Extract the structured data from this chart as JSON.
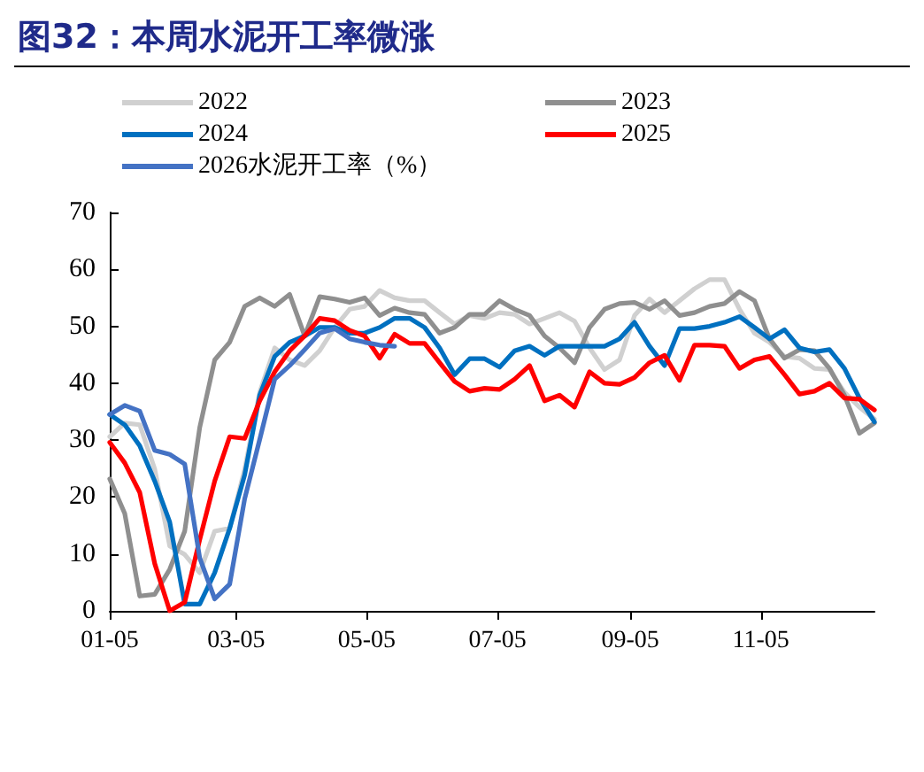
{
  "chart_data": {
    "type": "line",
    "title": "图32：本周水泥开工率微涨",
    "x": [
      "--01-05",
      "--01-12",
      "--01-19",
      "--01-26",
      "--02-02",
      "--02-09",
      "--02-16",
      "--02-23",
      "--03-02",
      "--03-09",
      "--03-16",
      "--03-23",
      "--03-30",
      "--04-06",
      "--04-13",
      "--04-20",
      "--04-27",
      "--05-04",
      "--05-11",
      "--05-18",
      "--05-25",
      "--06-01",
      "--06-08",
      "--06-15",
      "--06-22",
      "--06-29",
      "--07-06",
      "--07-13",
      "--07-20",
      "--07-27",
      "--08-03",
      "--08-10",
      "--08-17",
      "--08-24",
      "--08-31",
      "--09-07",
      "--09-14",
      "--09-21",
      "--09-28",
      "--10-05",
      "--10-12",
      "--10-19",
      "--10-26",
      "--11-02",
      "--11-09",
      "--11-16",
      "--11-23",
      "--11-30",
      "--12-07",
      "--12-14",
      "--12-21",
      "--12-28"
    ],
    "series": [
      {
        "name": "2022",
        "color": "#d0d0d0",
        "values": [
          30.6,
          33,
          32.7,
          24.9,
          11.4,
          9.9,
          6.7,
          14,
          14.5,
          24.9,
          38.4,
          46.2,
          44.1,
          43.1,
          45.7,
          49.8,
          53,
          53.5,
          56.3,
          55,
          54.5,
          54.5,
          52.4,
          50.4,
          51.9,
          51.4,
          52.4,
          52.1,
          50.4,
          51.4,
          52.4,
          50.9,
          46.2,
          42.4,
          44.1,
          51.9,
          54.8,
          52.4,
          54.5,
          56.6,
          58.2,
          58.2,
          53,
          48.8,
          47.2,
          44.7,
          44.4,
          42.6,
          42.4,
          38.4,
          35.8,
          33.7
        ]
      },
      {
        "name": "2023",
        "color": "#8f8f8f",
        "values": [
          23.2,
          17.1,
          2.6,
          2.9,
          7.3,
          14,
          32.2,
          44.1,
          47.2,
          53.5,
          55,
          53.5,
          55.6,
          48.3,
          55.2,
          54.8,
          54.2,
          55,
          51.9,
          53.2,
          52.4,
          52.1,
          48.8,
          49.8,
          52.1,
          52.1,
          54.5,
          53,
          51.9,
          48.3,
          46.2,
          43.6,
          49.8,
          53,
          54,
          54.2,
          53,
          54.5,
          51.9,
          52.4,
          53.5,
          54,
          56.1,
          54.5,
          47.8,
          44.4,
          45.9,
          45.7,
          42.6,
          37.9,
          31.2,
          33
        ]
      },
      {
        "name": "2024",
        "color": "#0070c0",
        "values": [
          34.5,
          32.7,
          29,
          22.8,
          15.6,
          1.2,
          1.2,
          6.7,
          14.5,
          23.9,
          37.9,
          44.7,
          47.2,
          48.3,
          49.8,
          49.8,
          48.8,
          48.8,
          49.8,
          51.4,
          51.4,
          49.8,
          46.2,
          41.5,
          44.3,
          44.3,
          42.8,
          45.7,
          46.5,
          44.9,
          46.5,
          46.5,
          46.5,
          46.5,
          47.8,
          50.7,
          46.5,
          43.1,
          49.6,
          49.6,
          50,
          50.7,
          51.7,
          49.8,
          47.8,
          49.4,
          46.2,
          45.5,
          45.9,
          42.6,
          37.4,
          33.2
        ]
      },
      {
        "name": "2025",
        "color": "#ff0000",
        "values": [
          29.6,
          26,
          20.8,
          8.3,
          0,
          1.5,
          12.5,
          22.8,
          30.6,
          30.3,
          36.9,
          42,
          45.7,
          48.3,
          51.4,
          51,
          49.3,
          48.3,
          44.4,
          48.6,
          47,
          47,
          43.6,
          40.3,
          38.6,
          39.1,
          38.9,
          40.7,
          43.1,
          36.9,
          37.9,
          35.8,
          42,
          40,
          39.8,
          41,
          43.6,
          44.9,
          40.5,
          46.7,
          46.7,
          46.5,
          42.6,
          44.1,
          44.7,
          41.5,
          38.1,
          38.6,
          40,
          37.4,
          37.2,
          35.3
        ]
      },
      {
        "name": "2026水泥开工率（%）",
        "color": "#4472c4",
        "x": [
          "--01-05",
          "--01-12",
          "--01-19",
          "--01-26",
          "--02-02",
          "--02-09",
          "--02-16",
          "--02-23",
          "--03-02",
          "--03-09",
          "--03-16",
          "--03-23",
          "--03-30",
          "--04-06",
          "--04-13",
          "--04-20",
          "--04-27",
          "--05-04",
          "--05-11",
          "--05-18"
        ],
        "values": [
          34.5,
          36.1,
          35.1,
          28.2,
          27.5,
          25.8,
          9.3,
          2.1,
          4.7,
          19.7,
          30.1,
          40.7,
          43.1,
          45.9,
          48.8,
          49.6,
          47.8,
          47.2,
          46.7,
          46.5
        ]
      }
    ],
    "xlim": [
      "--01-05",
      "--12-28"
    ],
    "xticks": [
      {
        "value": "--01-05",
        "label": "01-05"
      },
      {
        "value": "--03-05",
        "label": "03-05"
      },
      {
        "value": "--05-05",
        "label": "05-05"
      },
      {
        "value": "--07-05",
        "label": "07-05"
      },
      {
        "value": "--09-05",
        "label": "09-05"
      },
      {
        "value": "--11-05",
        "label": "11-05"
      }
    ],
    "ylim": [
      0,
      70
    ],
    "yticks": [
      0,
      10,
      20,
      30,
      40,
      50,
      60,
      70
    ],
    "grid": false,
    "legend": "top",
    "marker": "none",
    "line_style": "solid"
  }
}
